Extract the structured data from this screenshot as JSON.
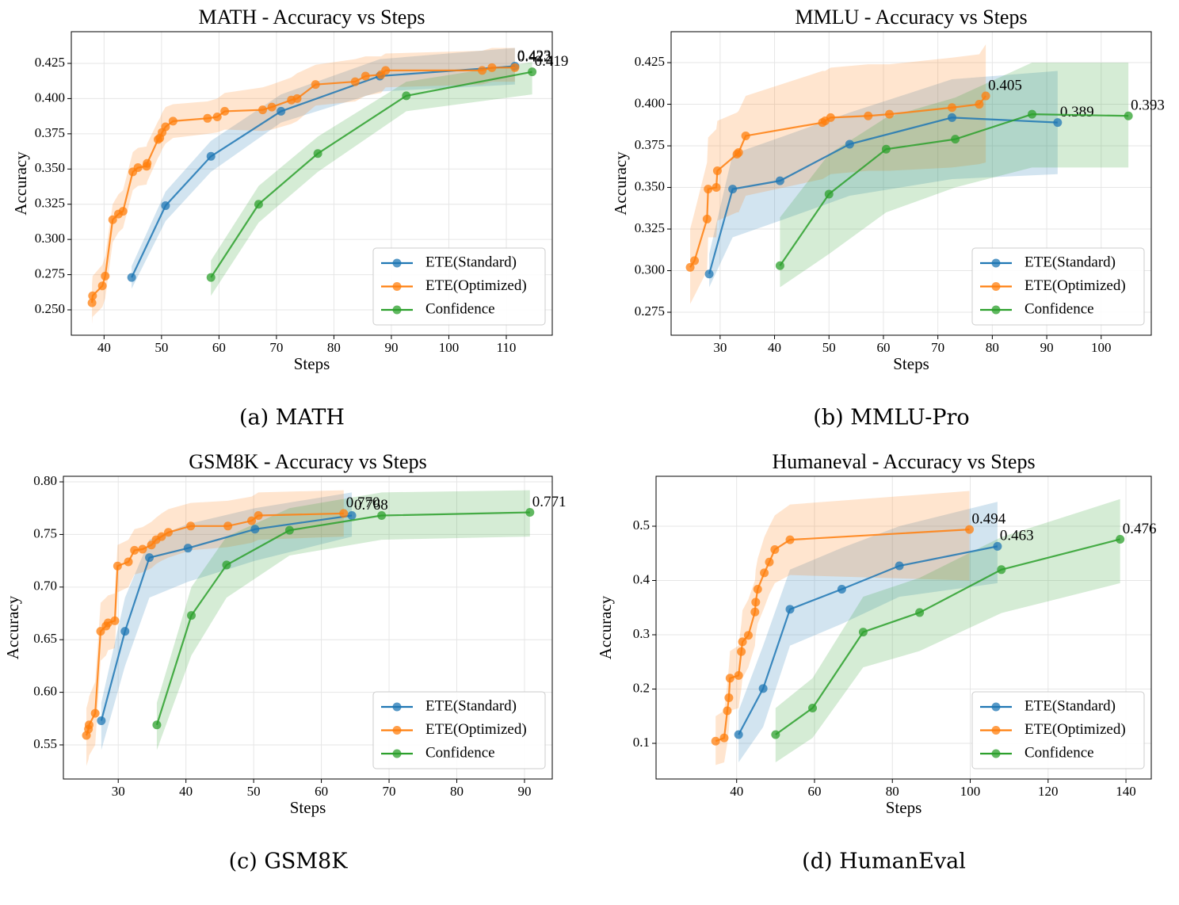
{
  "chart_data": [
    {
      "type": "line",
      "title": "MATH - Accuracy vs Steps",
      "caption": "(a) MATH",
      "xlabel": "Steps",
      "ylabel": "Accuracy",
      "xlim": [
        34.3,
        118
      ],
      "ylim": [
        0.232,
        0.4475
      ],
      "xticks": [
        40,
        50,
        60,
        70,
        80,
        90,
        100,
        110
      ],
      "yticks": [
        {
          "value": 0.25,
          "label": "0.250"
        },
        0.275,
        {
          "value": 0.3,
          "label": "0.300"
        },
        0.325,
        {
          "value": 0.35,
          "label": "0.350"
        },
        0.375,
        {
          "value": 0.4,
          "label": "0.400"
        },
        0.425
      ],
      "grid": true,
      "legend": "lower right",
      "series": [
        {
          "name": "ETE(Standard)",
          "color": "#1f77b4",
          "x": [
            44.8,
            50.7,
            58.6,
            70.8,
            88,
            111.5
          ],
          "values": [
            0.273,
            0.324,
            0.359,
            0.391,
            0.416,
            0.423
          ],
          "lower": [
            0.265,
            0.313,
            0.348,
            0.383,
            0.405,
            0.41
          ],
          "upper": [
            0.281,
            0.334,
            0.37,
            0.403,
            0.428,
            0.436
          ],
          "value_labels": [
            null,
            null,
            null,
            null,
            null,
            "0.423"
          ]
        },
        {
          "name": "ETE(Optimized)",
          "color": "#ff7f0e",
          "x": [
            37.9,
            38.0,
            39.7,
            40.2,
            41.5,
            42.5,
            43.3,
            45.0,
            45.9,
            47.4,
            47.5,
            49.4,
            49.7,
            50.1,
            50.7,
            52.0,
            58.0,
            59.7,
            61.0,
            67.6,
            69.2,
            72.6,
            73.6,
            76.8,
            83.7,
            85.5,
            88.2,
            89.0,
            105.8,
            107.5,
            111.5
          ],
          "values": [
            0.255,
            0.26,
            0.267,
            0.274,
            0.314,
            0.318,
            0.32,
            0.348,
            0.351,
            0.352,
            0.354,
            0.371,
            0.372,
            0.376,
            0.38,
            0.384,
            0.386,
            0.387,
            0.391,
            0.392,
            0.394,
            0.399,
            0.4,
            0.41,
            0.412,
            0.416,
            0.417,
            0.42,
            0.42,
            0.422,
            0.422
          ],
          "lower": [
            0.24,
            0.245,
            0.252,
            0.258,
            0.298,
            0.305,
            0.308,
            0.335,
            0.338,
            0.339,
            0.341,
            0.358,
            0.36,
            0.364,
            0.368,
            0.372,
            0.375,
            0.376,
            0.378,
            0.377,
            0.378,
            0.382,
            0.384,
            0.395,
            0.398,
            0.402,
            0.404,
            0.408,
            0.41,
            0.412,
            0.412
          ],
          "upper": [
            0.268,
            0.274,
            0.282,
            0.288,
            0.325,
            0.332,
            0.335,
            0.362,
            0.365,
            0.366,
            0.368,
            0.384,
            0.386,
            0.39,
            0.394,
            0.396,
            0.398,
            0.4,
            0.404,
            0.408,
            0.41,
            0.415,
            0.418,
            0.424,
            0.428,
            0.43,
            0.43,
            0.432,
            0.434,
            0.436,
            0.436
          ],
          "value_labels": [
            null,
            null,
            null,
            null,
            null,
            null,
            null,
            null,
            null,
            null,
            null,
            null,
            null,
            null,
            null,
            null,
            null,
            null,
            null,
            null,
            null,
            null,
            null,
            null,
            null,
            null,
            null,
            null,
            null,
            null,
            "0.422"
          ]
        },
        {
          "name": "Confidence",
          "color": "#2ca02c",
          "x": [
            58.6,
            66.9,
            77.2,
            92.6,
            114.5
          ],
          "values": [
            0.273,
            0.325,
            0.361,
            0.402,
            0.419
          ],
          "lower": [
            0.26,
            0.312,
            0.348,
            0.391,
            0.403
          ],
          "upper": [
            0.285,
            0.338,
            0.373,
            0.412,
            0.426
          ],
          "value_labels": [
            null,
            null,
            null,
            null,
            "0.419"
          ]
        }
      ]
    },
    {
      "type": "line",
      "title": "MMLU - Accuracy vs Steps",
      "caption": "(b) MMLU-Pro",
      "xlabel": "Steps",
      "ylabel": "Accuracy",
      "xlim": [
        21.0,
        109.2
      ],
      "ylim": [
        0.2612,
        0.4436
      ],
      "xticks": [
        30,
        40,
        50,
        60,
        70,
        80,
        90,
        100
      ],
      "yticks": [
        0.275,
        {
          "value": 0.3,
          "label": "0.300"
        },
        0.325,
        {
          "value": 0.35,
          "label": "0.350"
        },
        0.375,
        {
          "value": 0.4,
          "label": "0.400"
        },
        0.425
      ],
      "grid": true,
      "legend": "lower right",
      "series": [
        {
          "name": "ETE(Standard)",
          "color": "#1f77b4",
          "x": [
            28,
            32.3,
            41,
            53.8,
            72.6,
            92
          ],
          "values": [
            0.298,
            0.349,
            0.354,
            0.376,
            0.392,
            0.389
          ],
          "lower": [
            0.29,
            0.32,
            0.33,
            0.345,
            0.355,
            0.358
          ],
          "upper": [
            0.31,
            0.37,
            0.38,
            0.395,
            0.415,
            0.42
          ],
          "value_labels": [
            null,
            null,
            null,
            null,
            null,
            "0.389"
          ]
        },
        {
          "name": "ETE(Optimized)",
          "color": "#ff7f0e",
          "x": [
            24.5,
            25.3,
            27.6,
            27.8,
            29.3,
            29.5,
            33.1,
            33.4,
            34.7,
            48.8,
            49.3,
            50.3,
            57.2,
            61.1,
            72.6,
            77.6,
            78.8
          ],
          "values": [
            0.302,
            0.306,
            0.331,
            0.349,
            0.35,
            0.36,
            0.37,
            0.371,
            0.381,
            0.389,
            0.39,
            0.392,
            0.393,
            0.394,
            0.398,
            0.4,
            0.405
          ],
          "lower": [
            0.28,
            0.285,
            0.3,
            0.32,
            0.32,
            0.33,
            0.335,
            0.335,
            0.345,
            0.355,
            0.356,
            0.358,
            0.36,
            0.36,
            0.362,
            0.364,
            0.365
          ],
          "upper": [
            0.325,
            0.335,
            0.365,
            0.38,
            0.385,
            0.39,
            0.395,
            0.396,
            0.405,
            0.42,
            0.42,
            0.422,
            0.424,
            0.424,
            0.428,
            0.43,
            0.436
          ],
          "value_labels": [
            null,
            null,
            null,
            null,
            null,
            null,
            null,
            null,
            null,
            null,
            null,
            null,
            null,
            null,
            null,
            null,
            "0.405"
          ]
        },
        {
          "name": "Confidence",
          "color": "#2ca02c",
          "x": [
            41,
            50,
            60.5,
            73.2,
            87.3,
            105
          ],
          "values": [
            0.303,
            0.346,
            0.373,
            0.379,
            0.394,
            0.393
          ],
          "lower": [
            0.29,
            0.31,
            0.335,
            0.35,
            0.362,
            0.362
          ],
          "upper": [
            0.332,
            0.37,
            0.392,
            0.404,
            0.425,
            0.425
          ],
          "value_labels": [
            null,
            null,
            null,
            null,
            null,
            "0.393"
          ]
        }
      ]
    },
    {
      "type": "line",
      "title": "GSM8K - Accuracy vs Steps",
      "caption": "(c) GSM8K",
      "xlabel": "Steps",
      "ylabel": "Accuracy",
      "xlim": [
        21.9,
        94.1
      ],
      "ylim": [
        0.5176,
        0.8053
      ],
      "xticks": [
        30,
        40,
        50,
        60,
        70,
        80,
        90
      ],
      "yticks": [
        0.55,
        {
          "value": 0.6,
          "label": "0.60"
        },
        0.65,
        {
          "value": 0.7,
          "label": "0.70"
        },
        0.75,
        {
          "value": 0.8,
          "label": "0.80"
        }
      ],
      "grid": true,
      "legend": "lower right",
      "series": [
        {
          "name": "ETE(Standard)",
          "color": "#1f77b4",
          "x": [
            27.5,
            31,
            34.6,
            40.3,
            50.2,
            64.5
          ],
          "values": [
            0.573,
            0.658,
            0.728,
            0.737,
            0.755,
            0.768
          ],
          "lower": [
            0.545,
            0.625,
            0.69,
            0.705,
            0.725,
            0.748
          ],
          "upper": [
            0.59,
            0.69,
            0.745,
            0.76,
            0.775,
            0.79
          ],
          "value_labels": [
            null,
            null,
            null,
            null,
            null,
            "0.768"
          ]
        },
        {
          "name": "ETE(Optimized)",
          "color": "#ff7f0e",
          "x": [
            25.3,
            25.6,
            25.7,
            26.6,
            27.4,
            28.2,
            28.5,
            29.5,
            29.9,
            31.5,
            32.4,
            33.6,
            34.9,
            35.6,
            36.4,
            37.4,
            40.7,
            46.2,
            49.7,
            50.7,
            63.3
          ],
          "values": [
            0.559,
            0.565,
            0.569,
            0.58,
            0.658,
            0.663,
            0.666,
            0.668,
            0.72,
            0.724,
            0.735,
            0.736,
            0.74,
            0.745,
            0.748,
            0.752,
            0.758,
            0.758,
            0.763,
            0.768,
            0.77
          ],
          "lower": [
            0.53,
            0.536,
            0.54,
            0.55,
            0.63,
            0.635,
            0.64,
            0.642,
            0.695,
            0.7,
            0.712,
            0.714,
            0.718,
            0.722,
            0.725,
            0.728,
            0.735,
            0.738,
            0.742,
            0.745,
            0.748
          ],
          "upper": [
            0.585,
            0.592,
            0.596,
            0.61,
            0.685,
            0.69,
            0.692,
            0.694,
            0.74,
            0.745,
            0.755,
            0.757,
            0.762,
            0.766,
            0.77,
            0.774,
            0.78,
            0.782,
            0.786,
            0.79,
            0.792
          ],
          "value_labels": [
            null,
            null,
            null,
            null,
            null,
            null,
            null,
            null,
            null,
            null,
            null,
            null,
            null,
            null,
            null,
            null,
            null,
            null,
            null,
            null,
            "0.770"
          ]
        },
        {
          "name": "Confidence",
          "color": "#2ca02c",
          "x": [
            35.7,
            40.8,
            46,
            55.3,
            68.9,
            90.8
          ],
          "values": [
            0.569,
            0.673,
            0.721,
            0.754,
            0.768,
            0.771
          ],
          "lower": [
            0.545,
            0.635,
            0.69,
            0.73,
            0.745,
            0.748
          ],
          "upper": [
            0.59,
            0.7,
            0.748,
            0.775,
            0.79,
            0.792
          ],
          "value_labels": [
            null,
            null,
            null,
            null,
            null,
            "0.771"
          ]
        }
      ]
    },
    {
      "type": "line",
      "title": "Humaneval - Accuracy vs Steps",
      "caption": "(d) HumanEval",
      "xlabel": "Steps",
      "ylabel": "Accuracy",
      "xlim": [
        19.3,
        146.5
      ],
      "ylim": [
        0.0343,
        0.592
      ],
      "xticks": [
        40,
        60,
        80,
        100,
        120,
        140
      ],
      "yticks": [
        0.1,
        0.2,
        0.3,
        0.4,
        0.5
      ],
      "grid": true,
      "legend": "lower right",
      "series": [
        {
          "name": "ETE(Standard)",
          "color": "#1f77b4",
          "x": [
            40.5,
            46.8,
            53.7,
            67,
            81.8,
            107
          ],
          "values": [
            0.116,
            0.201,
            0.347,
            0.384,
            0.427,
            0.463
          ],
          "lower": [
            0.065,
            0.13,
            0.28,
            0.32,
            0.37,
            0.395
          ],
          "upper": [
            0.16,
            0.28,
            0.42,
            0.46,
            0.5,
            0.545
          ],
          "value_labels": [
            null,
            null,
            null,
            null,
            null,
            "0.463"
          ]
        },
        {
          "name": "ETE(Optimized)",
          "color": "#ff7f0e",
          "x": [
            34.6,
            36.8,
            37.6,
            38,
            38.3,
            40.5,
            41.2,
            41.5,
            43,
            44.7,
            44.9,
            45.4,
            47.1,
            48.4,
            49.8,
            53.7,
            99.8
          ],
          "values": [
            0.104,
            0.11,
            0.16,
            0.184,
            0.22,
            0.225,
            0.269,
            0.287,
            0.299,
            0.342,
            0.36,
            0.384,
            0.414,
            0.434,
            0.457,
            0.475,
            0.494
          ],
          "lower": [
            0.06,
            0.065,
            0.1,
            0.125,
            0.16,
            0.165,
            0.2,
            0.22,
            0.24,
            0.28,
            0.3,
            0.32,
            0.35,
            0.375,
            0.395,
            0.41,
            0.4
          ],
          "upper": [
            0.15,
            0.16,
            0.21,
            0.24,
            0.27,
            0.28,
            0.32,
            0.345,
            0.365,
            0.4,
            0.42,
            0.44,
            0.48,
            0.5,
            0.52,
            0.54,
            0.565
          ],
          "value_labels": [
            null,
            null,
            null,
            null,
            null,
            null,
            null,
            null,
            null,
            null,
            null,
            null,
            null,
            null,
            null,
            null,
            "0.494"
          ]
        },
        {
          "name": "Confidence",
          "color": "#2ca02c",
          "x": [
            50,
            59.5,
            72.5,
            87,
            108,
            138.5
          ],
          "values": [
            0.116,
            0.165,
            0.305,
            0.341,
            0.42,
            0.476
          ],
          "lower": [
            0.065,
            0.11,
            0.24,
            0.27,
            0.34,
            0.395
          ],
          "upper": [
            0.165,
            0.22,
            0.37,
            0.405,
            0.48,
            0.55
          ],
          "value_labels": [
            null,
            null,
            null,
            null,
            null,
            "0.476"
          ]
        }
      ]
    }
  ]
}
